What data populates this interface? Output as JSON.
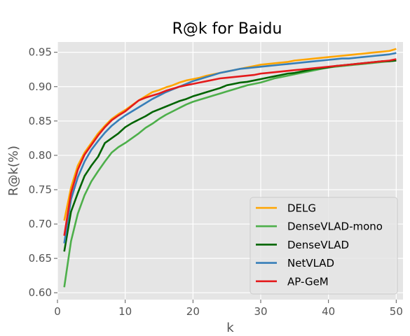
{
  "chart_data": {
    "type": "line",
    "title": "R@k for Baidu",
    "xlabel": "k",
    "ylabel": "R@k(%)",
    "xlim": [
      0.0,
      51.0
    ],
    "ylim": [
      0.59,
      0.965
    ],
    "xticks": [
      0,
      10,
      20,
      30,
      40,
      50
    ],
    "xtick_labels": [
      "0",
      "10",
      "20",
      "30",
      "40",
      "50"
    ],
    "yticks": [
      0.6,
      0.65,
      0.7,
      0.75,
      0.8,
      0.85,
      0.9,
      0.95
    ],
    "ytick_labels": [
      "0.60",
      "0.65",
      "0.70",
      "0.75",
      "0.80",
      "0.85",
      "0.90",
      "0.95"
    ],
    "grid": true,
    "background_color": "#e5e5e5",
    "legend_position": "bottom-right",
    "x": [
      1,
      2,
      3,
      4,
      5,
      6,
      7,
      8,
      9,
      10,
      11,
      12,
      13,
      14,
      15,
      16,
      17,
      18,
      19,
      20,
      21,
      22,
      23,
      24,
      25,
      26,
      27,
      28,
      29,
      30,
      31,
      32,
      33,
      34,
      35,
      36,
      37,
      38,
      39,
      40,
      41,
      42,
      43,
      44,
      45,
      46,
      47,
      48,
      49,
      50
    ],
    "series": [
      {
        "name": "DELG",
        "color": "#ffa500",
        "values": [
          0.705,
          0.753,
          0.785,
          0.804,
          0.818,
          0.832,
          0.843,
          0.853,
          0.86,
          0.866,
          0.873,
          0.88,
          0.886,
          0.892,
          0.895,
          0.899,
          0.902,
          0.906,
          0.909,
          0.911,
          0.913,
          0.916,
          0.918,
          0.92,
          0.922,
          0.924,
          0.926,
          0.928,
          0.93,
          0.932,
          0.933,
          0.934,
          0.935,
          0.936,
          0.938,
          0.939,
          0.94,
          0.941,
          0.942,
          0.943,
          0.944,
          0.945,
          0.946,
          0.947,
          0.948,
          0.949,
          0.95,
          0.951,
          0.952,
          0.955
        ]
      },
      {
        "name": "DenseVLAD-mono",
        "color": "#4daf4a",
        "values": [
          0.608,
          0.675,
          0.715,
          0.742,
          0.762,
          0.777,
          0.791,
          0.804,
          0.812,
          0.818,
          0.825,
          0.832,
          0.84,
          0.846,
          0.853,
          0.859,
          0.864,
          0.869,
          0.874,
          0.878,
          0.881,
          0.884,
          0.887,
          0.89,
          0.893,
          0.896,
          0.899,
          0.902,
          0.904,
          0.906,
          0.909,
          0.912,
          0.914,
          0.916,
          0.918,
          0.92,
          0.922,
          0.924,
          0.926,
          0.928,
          0.929,
          0.93,
          0.931,
          0.932,
          0.933,
          0.934,
          0.935,
          0.936,
          0.937,
          0.938
        ]
      },
      {
        "name": "DenseVLAD",
        "color": "#006400",
        "values": [
          0.66,
          0.718,
          0.745,
          0.77,
          0.785,
          0.798,
          0.818,
          0.825,
          0.832,
          0.841,
          0.847,
          0.852,
          0.857,
          0.863,
          0.867,
          0.871,
          0.875,
          0.879,
          0.882,
          0.886,
          0.889,
          0.892,
          0.895,
          0.898,
          0.902,
          0.904,
          0.906,
          0.907,
          0.909,
          0.911,
          0.913,
          0.915,
          0.917,
          0.919,
          0.92,
          0.922,
          0.924,
          0.926,
          0.927,
          0.928,
          0.93,
          0.931,
          0.932,
          0.933,
          0.934,
          0.935,
          0.936,
          0.937,
          0.937,
          0.938
        ]
      },
      {
        "name": "NetVLAD",
        "color": "#377eb8",
        "values": [
          0.672,
          0.736,
          0.768,
          0.791,
          0.808,
          0.821,
          0.833,
          0.843,
          0.851,
          0.858,
          0.864,
          0.87,
          0.876,
          0.882,
          0.887,
          0.892,
          0.896,
          0.9,
          0.904,
          0.908,
          0.911,
          0.914,
          0.917,
          0.92,
          0.922,
          0.924,
          0.926,
          0.927,
          0.928,
          0.929,
          0.93,
          0.931,
          0.932,
          0.933,
          0.934,
          0.935,
          0.936,
          0.937,
          0.938,
          0.939,
          0.94,
          0.941,
          0.941,
          0.942,
          0.943,
          0.944,
          0.945,
          0.946,
          0.947,
          0.949
        ]
      },
      {
        "name": "AP-GeM",
        "color": "#e41a1c",
        "values": [
          0.683,
          0.745,
          0.779,
          0.801,
          0.815,
          0.829,
          0.841,
          0.851,
          0.858,
          0.864,
          0.872,
          0.88,
          0.884,
          0.887,
          0.89,
          0.894,
          0.897,
          0.9,
          0.902,
          0.904,
          0.906,
          0.908,
          0.91,
          0.912,
          0.913,
          0.914,
          0.915,
          0.916,
          0.917,
          0.919,
          0.92,
          0.921,
          0.922,
          0.923,
          0.924,
          0.925,
          0.926,
          0.927,
          0.928,
          0.929,
          0.93,
          0.931,
          0.932,
          0.933,
          0.934,
          0.935,
          0.936,
          0.937,
          0.938,
          0.94
        ]
      }
    ]
  }
}
